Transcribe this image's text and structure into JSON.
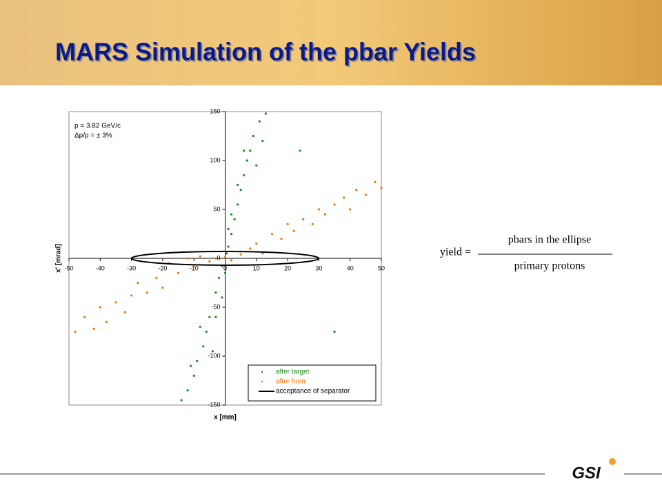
{
  "header": {
    "title": "MARS Simulation of the pbar Yields"
  },
  "chart_data": {
    "type": "scatter",
    "annotations": [
      "p = 3.82 GeV/c",
      "Δp/p = ± 3%"
    ],
    "x_label": "x [mm]",
    "y_label": "x' [mrad]",
    "xlim": [
      -50,
      50
    ],
    "ylim": [
      -150,
      150
    ],
    "xticks": [
      -50,
      -40,
      -30,
      -20,
      -10,
      0,
      10,
      20,
      30,
      40,
      50
    ],
    "yticks": [
      -150,
      -100,
      -50,
      0,
      50,
      100,
      150
    ],
    "legend": "lower right",
    "series": [
      {
        "name": "after target",
        "color": "#1a8a1a",
        "x": [
          0.5,
          1,
          -1,
          2,
          3,
          -2,
          4,
          -3,
          5,
          -5,
          6,
          -6,
          7,
          -7,
          8,
          -9,
          9,
          -10,
          11,
          -12,
          13,
          -14,
          2,
          -1,
          6,
          -4,
          10,
          -8,
          1,
          0,
          12,
          -11,
          4,
          -3,
          24,
          35
        ],
        "values": [
          5,
          12,
          -8,
          25,
          40,
          -20,
          55,
          -35,
          70,
          -60,
          85,
          -75,
          100,
          -90,
          110,
          -105,
          125,
          -120,
          140,
          -135,
          148,
          -145,
          45,
          -40,
          110,
          -95,
          95,
          -70,
          30,
          -15,
          120,
          -110,
          75,
          -60,
          110,
          -75
        ]
      },
      {
        "name": "after horn",
        "color": "#e87511",
        "x": [
          -48,
          -45,
          -42,
          -40,
          -38,
          -35,
          -32,
          -30,
          -28,
          -25,
          -22,
          -20,
          -18,
          -15,
          -12,
          -10,
          -8,
          -5,
          -3,
          0,
          2,
          5,
          8,
          10,
          12,
          15,
          18,
          20,
          22,
          25,
          28,
          30,
          32,
          35,
          38,
          40,
          42,
          45,
          48,
          50
        ],
        "values": [
          -75,
          -60,
          -72,
          -50,
          -65,
          -45,
          -55,
          -38,
          -25,
          -35,
          -20,
          -30,
          -5,
          -15,
          0,
          -8,
          2,
          -3,
          0,
          1,
          -2,
          4,
          10,
          15,
          5,
          25,
          20,
          35,
          28,
          40,
          35,
          50,
          45,
          55,
          62,
          50,
          70,
          65,
          78,
          72
        ]
      }
    ],
    "ellipse": {
      "name": "acceptance of separator",
      "color": "#000000",
      "x_radius": 30,
      "y_radius": 7
    }
  },
  "formula": {
    "lhs": "yield =",
    "numerator": "pbars in the ellipse",
    "denominator": "primary protons"
  },
  "footer": {
    "logo": "GSI"
  }
}
